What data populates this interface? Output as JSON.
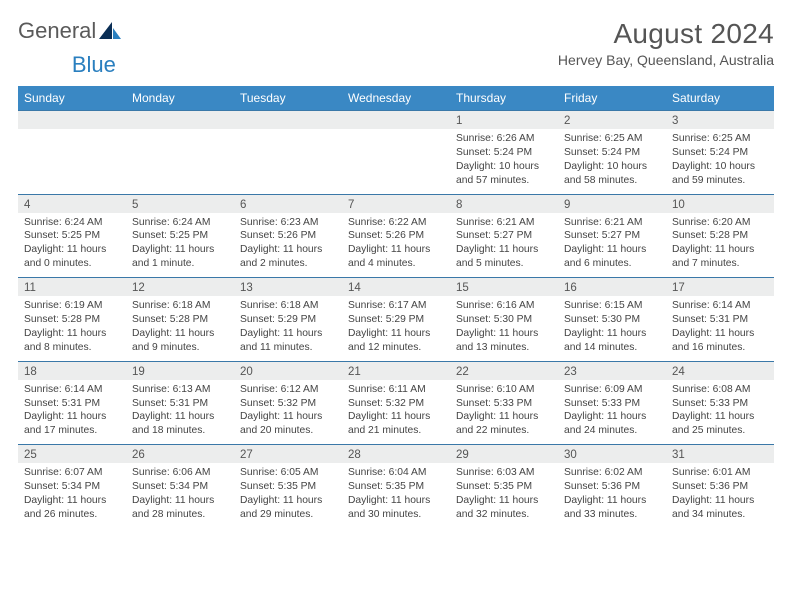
{
  "brand": {
    "part1": "General",
    "part2": "Blue"
  },
  "title": "August 2024",
  "subtitle": "Hervey Bay, Queensland, Australia",
  "colors": {
    "header_bg": "#3a88c4",
    "header_fg": "#ffffff",
    "daynum_bg": "#eceded",
    "rule": "#3a78a8",
    "brand_blue": "#2a7fbf",
    "text": "#444444"
  },
  "weekdays": [
    "Sunday",
    "Monday",
    "Tuesday",
    "Wednesday",
    "Thursday",
    "Friday",
    "Saturday"
  ],
  "weeks": [
    [
      null,
      null,
      null,
      null,
      {
        "n": "1",
        "sunrise": "6:26 AM",
        "sunset": "5:24 PM",
        "dayl": "Daylight: 10 hours and 57 minutes."
      },
      {
        "n": "2",
        "sunrise": "6:25 AM",
        "sunset": "5:24 PM",
        "dayl": "Daylight: 10 hours and 58 minutes."
      },
      {
        "n": "3",
        "sunrise": "6:25 AM",
        "sunset": "5:24 PM",
        "dayl": "Daylight: 10 hours and 59 minutes."
      }
    ],
    [
      {
        "n": "4",
        "sunrise": "6:24 AM",
        "sunset": "5:25 PM",
        "dayl": "Daylight: 11 hours and 0 minutes."
      },
      {
        "n": "5",
        "sunrise": "6:24 AM",
        "sunset": "5:25 PM",
        "dayl": "Daylight: 11 hours and 1 minute."
      },
      {
        "n": "6",
        "sunrise": "6:23 AM",
        "sunset": "5:26 PM",
        "dayl": "Daylight: 11 hours and 2 minutes."
      },
      {
        "n": "7",
        "sunrise": "6:22 AM",
        "sunset": "5:26 PM",
        "dayl": "Daylight: 11 hours and 4 minutes."
      },
      {
        "n": "8",
        "sunrise": "6:21 AM",
        "sunset": "5:27 PM",
        "dayl": "Daylight: 11 hours and 5 minutes."
      },
      {
        "n": "9",
        "sunrise": "6:21 AM",
        "sunset": "5:27 PM",
        "dayl": "Daylight: 11 hours and 6 minutes."
      },
      {
        "n": "10",
        "sunrise": "6:20 AM",
        "sunset": "5:28 PM",
        "dayl": "Daylight: 11 hours and 7 minutes."
      }
    ],
    [
      {
        "n": "11",
        "sunrise": "6:19 AM",
        "sunset": "5:28 PM",
        "dayl": "Daylight: 11 hours and 8 minutes."
      },
      {
        "n": "12",
        "sunrise": "6:18 AM",
        "sunset": "5:28 PM",
        "dayl": "Daylight: 11 hours and 9 minutes."
      },
      {
        "n": "13",
        "sunrise": "6:18 AM",
        "sunset": "5:29 PM",
        "dayl": "Daylight: 11 hours and 11 minutes."
      },
      {
        "n": "14",
        "sunrise": "6:17 AM",
        "sunset": "5:29 PM",
        "dayl": "Daylight: 11 hours and 12 minutes."
      },
      {
        "n": "15",
        "sunrise": "6:16 AM",
        "sunset": "5:30 PM",
        "dayl": "Daylight: 11 hours and 13 minutes."
      },
      {
        "n": "16",
        "sunrise": "6:15 AM",
        "sunset": "5:30 PM",
        "dayl": "Daylight: 11 hours and 14 minutes."
      },
      {
        "n": "17",
        "sunrise": "6:14 AM",
        "sunset": "5:31 PM",
        "dayl": "Daylight: 11 hours and 16 minutes."
      }
    ],
    [
      {
        "n": "18",
        "sunrise": "6:14 AM",
        "sunset": "5:31 PM",
        "dayl": "Daylight: 11 hours and 17 minutes."
      },
      {
        "n": "19",
        "sunrise": "6:13 AM",
        "sunset": "5:31 PM",
        "dayl": "Daylight: 11 hours and 18 minutes."
      },
      {
        "n": "20",
        "sunrise": "6:12 AM",
        "sunset": "5:32 PM",
        "dayl": "Daylight: 11 hours and 20 minutes."
      },
      {
        "n": "21",
        "sunrise": "6:11 AM",
        "sunset": "5:32 PM",
        "dayl": "Daylight: 11 hours and 21 minutes."
      },
      {
        "n": "22",
        "sunrise": "6:10 AM",
        "sunset": "5:33 PM",
        "dayl": "Daylight: 11 hours and 22 minutes."
      },
      {
        "n": "23",
        "sunrise": "6:09 AM",
        "sunset": "5:33 PM",
        "dayl": "Daylight: 11 hours and 24 minutes."
      },
      {
        "n": "24",
        "sunrise": "6:08 AM",
        "sunset": "5:33 PM",
        "dayl": "Daylight: 11 hours and 25 minutes."
      }
    ],
    [
      {
        "n": "25",
        "sunrise": "6:07 AM",
        "sunset": "5:34 PM",
        "dayl": "Daylight: 11 hours and 26 minutes."
      },
      {
        "n": "26",
        "sunrise": "6:06 AM",
        "sunset": "5:34 PM",
        "dayl": "Daylight: 11 hours and 28 minutes."
      },
      {
        "n": "27",
        "sunrise": "6:05 AM",
        "sunset": "5:35 PM",
        "dayl": "Daylight: 11 hours and 29 minutes."
      },
      {
        "n": "28",
        "sunrise": "6:04 AM",
        "sunset": "5:35 PM",
        "dayl": "Daylight: 11 hours and 30 minutes."
      },
      {
        "n": "29",
        "sunrise": "6:03 AM",
        "sunset": "5:35 PM",
        "dayl": "Daylight: 11 hours and 32 minutes."
      },
      {
        "n": "30",
        "sunrise": "6:02 AM",
        "sunset": "5:36 PM",
        "dayl": "Daylight: 11 hours and 33 minutes."
      },
      {
        "n": "31",
        "sunrise": "6:01 AM",
        "sunset": "5:36 PM",
        "dayl": "Daylight: 11 hours and 34 minutes."
      }
    ]
  ]
}
